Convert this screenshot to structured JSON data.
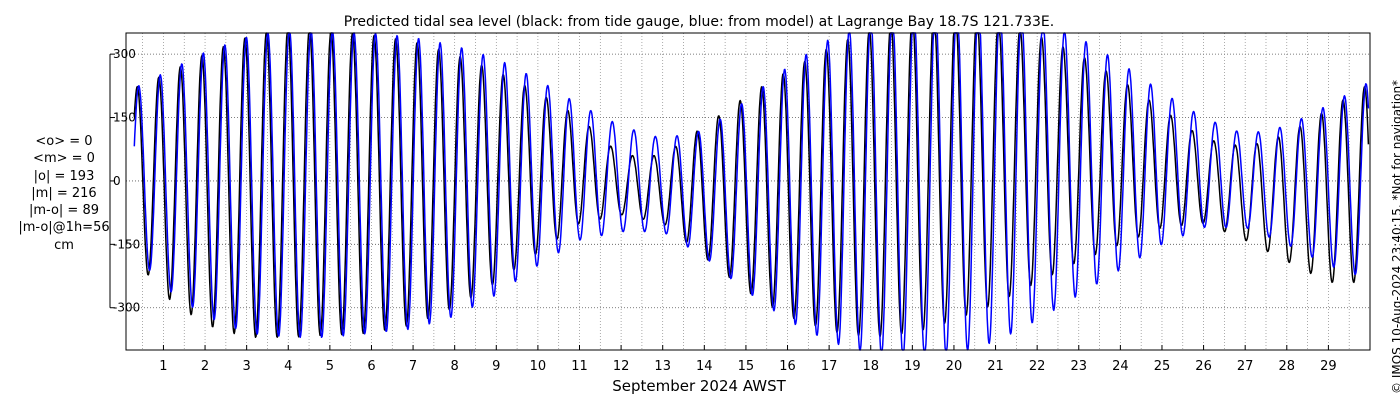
{
  "chart_data": {
    "type": "line",
    "title": "Predicted tidal sea level (black: from tide gauge, blue: from model) at Lagrange Bay 18.7S 121.733E.",
    "xlabel": "September 2024 AWST",
    "ylabel": "",
    "x_unit": "days of September 2024",
    "xlim": [
      0.1,
      30.0
    ],
    "ylim": [
      -400,
      350
    ],
    "x_ticks": [
      "1",
      "2",
      "3",
      "4",
      "5",
      "6",
      "7",
      "8",
      "9",
      "10",
      "11",
      "12",
      "13",
      "14",
      "15",
      "16",
      "17",
      "18",
      "19",
      "20",
      "21",
      "22",
      "23",
      "24",
      "25",
      "26",
      "27",
      "28",
      "29"
    ],
    "y_ticks": [
      {
        "value": 300,
        "label": "300"
      },
      {
        "value": 150,
        "label": "150"
      },
      {
        "value": 0,
        "label": "0"
      },
      {
        "value": -150,
        "label": "-150"
      },
      {
        "value": -300,
        "label": "-300"
      }
    ],
    "grid": true,
    "semidiurnal_period_days": 0.5175,
    "series": [
      {
        "name": "from tide gauge",
        "color": "#000000",
        "envelope": {
          "day": [
            0.3,
            1,
            2,
            3,
            4,
            5,
            6,
            7,
            8,
            9,
            10,
            11,
            12,
            13,
            14,
            15,
            16,
            17,
            18,
            19,
            20,
            21,
            22,
            23,
            24,
            25,
            26,
            27,
            28,
            29,
            29.9
          ],
          "max": [
            220,
            250,
            300,
            340,
            365,
            355,
            345,
            330,
            300,
            260,
            210,
            150,
            60,
            60,
            130,
            200,
            260,
            315,
            360,
            395,
            400,
            385,
            345,
            300,
            240,
            170,
            100,
            80,
            110,
            170,
            225
          ],
          "min": [
            -180,
            -270,
            -340,
            -370,
            -370,
            -365,
            -360,
            -340,
            -300,
            -240,
            -170,
            -100,
            -80,
            -100,
            -180,
            -260,
            -320,
            -355,
            -370,
            -360,
            -330,
            -290,
            -240,
            -190,
            -150,
            -110,
            -100,
            -140,
            -190,
            -240,
            -240
          ]
        }
      },
      {
        "name": "from model",
        "color": "#0000ff",
        "envelope": {
          "day": [
            0.3,
            1,
            2,
            3,
            4,
            5,
            6,
            7,
            8,
            9,
            10,
            11,
            12,
            13,
            14,
            15,
            16,
            17,
            18,
            19,
            20,
            21,
            22,
            23,
            24,
            25,
            26,
            27,
            28,
            29,
            29.9
          ],
          "max": [
            220,
            255,
            305,
            340,
            360,
            355,
            350,
            340,
            320,
            290,
            240,
            180,
            130,
            100,
            120,
            190,
            270,
            335,
            385,
            410,
            420,
            415,
            385,
            340,
            280,
            210,
            150,
            110,
            130,
            180,
            230
          ],
          "min": [
            -170,
            -250,
            -320,
            -360,
            -370,
            -370,
            -360,
            -350,
            -320,
            -270,
            -200,
            -140,
            -120,
            -120,
            -180,
            -260,
            -330,
            -380,
            -410,
            -420,
            -410,
            -380,
            -330,
            -270,
            -210,
            -150,
            -110,
            -110,
            -150,
            -200,
            -230
          ]
        }
      }
    ]
  },
  "stats": {
    "mean_obs": "<o> = 0",
    "mean_model": "<m> = 0",
    "abs_obs": "|o| = 193",
    "abs_model": "|m| = 216",
    "abs_diff": "|m-o| = 89",
    "abs_diff_1h": "|m-o|@1h=56",
    "unit": "cm"
  },
  "side_note": "© IMOS 10-Aug-2024 23:40:15. *Not for navigation*"
}
